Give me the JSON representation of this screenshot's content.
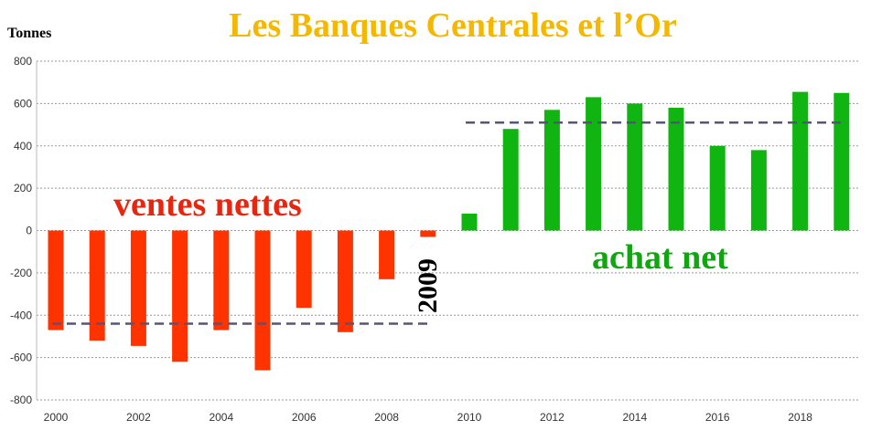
{
  "chart_data": {
    "type": "bar",
    "title": "Les Banques Centrales et l’Or",
    "ylabel": "Tonnes",
    "xlabel": "",
    "x": [
      2000,
      2001,
      2002,
      2003,
      2004,
      2005,
      2006,
      2007,
      2008,
      2009,
      2010,
      2011,
      2012,
      2013,
      2014,
      2015,
      2016,
      2017,
      2018,
      2019
    ],
    "values": [
      -470,
      -520,
      -545,
      -620,
      -470,
      -660,
      -365,
      -480,
      -230,
      -30,
      80,
      480,
      570,
      630,
      600,
      580,
      400,
      380,
      655,
      650
    ],
    "ylim": [
      -800,
      800
    ],
    "y_ticks": [
      800,
      600,
      400,
      200,
      0,
      -200,
      -400,
      -600,
      -800
    ],
    "x_ticks": [
      2000,
      2002,
      2004,
      2006,
      2008,
      2010,
      2012,
      2014,
      2016,
      2018
    ],
    "grid": true,
    "colors": {
      "negative": "#ff3300",
      "positive": "#11b511",
      "title": "#f5b800",
      "sales_label": "#e8260f",
      "buy_label": "#11a611",
      "average_line": "#555577",
      "grid": "#9a9a9a"
    },
    "averages": [
      {
        "label_ref": "sales",
        "from": 2000,
        "to": 2009,
        "value": -440
      },
      {
        "label_ref": "buy",
        "from": 2010,
        "to": 2019,
        "value": 510
      }
    ],
    "annotations": {
      "sales": "ventes nettes",
      "buy": "achat net",
      "turning_year": "2009"
    }
  }
}
